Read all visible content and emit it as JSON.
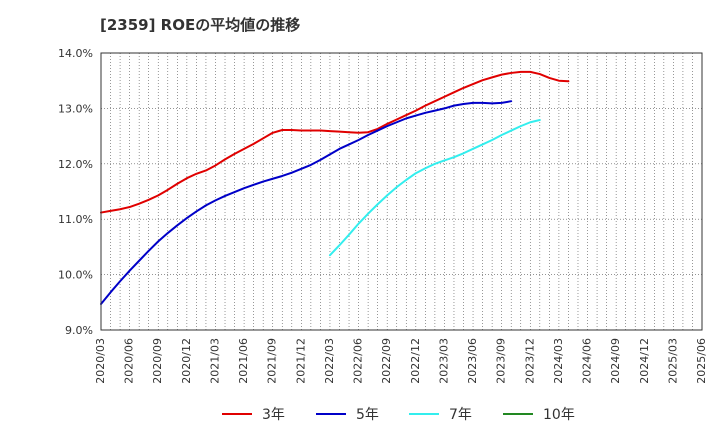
{
  "chart_data": {
    "type": "line",
    "title": "[2359]  ROEの平均値の推移",
    "xlabel": "",
    "ylabel": "",
    "ylim": [
      9.0,
      14.0
    ],
    "y_ticks": [
      "9.0%",
      "10.0%",
      "11.0%",
      "12.0%",
      "13.0%",
      "14.0%"
    ],
    "y_tick_values": [
      9.0,
      10.0,
      11.0,
      12.0,
      13.0,
      14.0
    ],
    "grid": true,
    "legend_position": "bottom",
    "x_labels": [
      "2020/03",
      "2020/06",
      "2020/09",
      "2020/12",
      "2021/03",
      "2021/06",
      "2021/09",
      "2021/12",
      "2022/03",
      "2022/06",
      "2022/09",
      "2022/12",
      "2023/03",
      "2023/06",
      "2023/09",
      "2023/12",
      "2024/03",
      "2024/06",
      "2024/09",
      "2024/12",
      "2025/03",
      "2025/06"
    ],
    "series": [
      {
        "name": "3年",
        "color": "#e00000",
        "start_month": 0,
        "values": [
          11.12,
          11.15,
          11.18,
          11.22,
          11.28,
          11.35,
          11.43,
          11.53,
          11.64,
          11.74,
          11.82,
          11.88,
          11.97,
          12.08,
          12.18,
          12.27,
          12.36,
          12.46,
          12.56,
          12.61,
          12.61,
          12.6,
          12.6,
          12.6,
          12.59,
          12.58,
          12.57,
          12.56,
          12.57,
          12.63,
          12.72,
          12.8,
          12.88,
          12.96,
          13.05,
          13.13,
          13.21,
          13.29,
          13.37,
          13.44,
          13.51,
          13.56,
          13.61,
          13.64,
          13.66,
          13.66,
          13.62,
          13.55,
          13.5,
          13.49
        ]
      },
      {
        "name": "5年",
        "color": "#0000c8",
        "start_month": 0,
        "values": [
          9.47,
          9.68,
          9.88,
          10.07,
          10.25,
          10.43,
          10.6,
          10.75,
          10.89,
          11.02,
          11.14,
          11.25,
          11.34,
          11.42,
          11.49,
          11.56,
          11.62,
          11.68,
          11.73,
          11.78,
          11.84,
          11.91,
          11.98,
          12.07,
          12.17,
          12.27,
          12.35,
          12.43,
          12.52,
          12.6,
          12.68,
          12.75,
          12.82,
          12.87,
          12.92,
          12.96,
          13.0,
          13.05,
          13.08,
          13.1,
          13.1,
          13.09,
          13.1,
          13.13
        ]
      },
      {
        "name": "7年",
        "color": "#33eeee",
        "start_month": 24,
        "values": [
          10.35,
          10.53,
          10.72,
          10.92,
          11.1,
          11.27,
          11.43,
          11.58,
          11.71,
          11.83,
          11.92,
          12.0,
          12.06,
          12.12,
          12.19,
          12.27,
          12.35,
          12.43,
          12.52,
          12.6,
          12.68,
          12.75,
          12.79
        ]
      },
      {
        "name": "10年",
        "color": "#228822",
        "start_month": 0,
        "values": []
      }
    ]
  }
}
